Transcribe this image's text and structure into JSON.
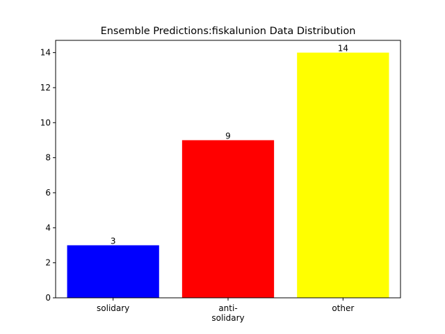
{
  "chart_data": {
    "type": "bar",
    "title": "Ensemble Predictions:fiskalunion Data Distribution",
    "categories": [
      [
        "solidary"
      ],
      [
        "anti-",
        "solidary"
      ],
      [
        "other"
      ]
    ],
    "values": [
      3,
      9,
      14
    ],
    "colors": [
      "#0000ff",
      "#ff0000",
      "#ffff00"
    ],
    "xlabel": "",
    "ylabel": "",
    "ylim": [
      0,
      14.7
    ],
    "yticks": [
      0,
      2,
      4,
      6,
      8,
      10,
      12,
      14
    ],
    "grid": false,
    "legend": "none"
  }
}
